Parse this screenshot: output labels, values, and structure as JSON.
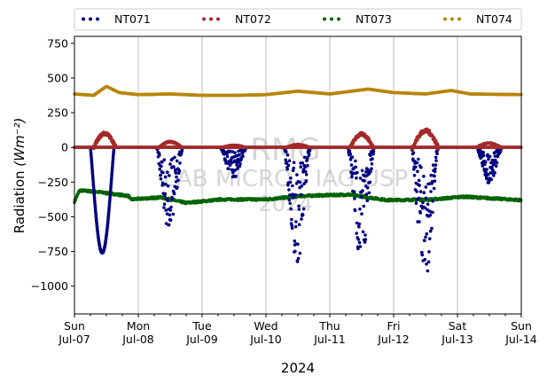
{
  "chart_data": {
    "type": "scatter",
    "xlabel": "2024",
    "ylabel": "Radiation",
    "ylabel_unit": "(Wm⁻²)",
    "ylim": [
      -1200,
      800
    ],
    "yticks": [
      -1000,
      -750,
      -500,
      -250,
      0,
      250,
      500,
      750
    ],
    "xlim": [
      0,
      7
    ],
    "xticks": [
      {
        "x": 0,
        "day": "Sun",
        "date": "Jul-07"
      },
      {
        "x": 1,
        "day": "Mon",
        "date": "Jul-08"
      },
      {
        "x": 2,
        "day": "Tue",
        "date": "Jul-09"
      },
      {
        "x": 3,
        "day": "Wed",
        "date": "Jul-10"
      },
      {
        "x": 4,
        "day": "Thu",
        "date": "Jul-11"
      },
      {
        "x": 5,
        "day": "Fri",
        "date": "Jul-12"
      },
      {
        "x": 6,
        "day": "Sat",
        "date": "Jul-13"
      },
      {
        "x": 7,
        "day": "Sun",
        "date": "Jul-14"
      }
    ],
    "grid": "vertical",
    "legend": "top",
    "watermark": [
      "RMG",
      "LAB MICRO - IAG USP",
      "2024"
    ],
    "series": [
      {
        "name": "NT071",
        "color": "#000080",
        "baseline": 0,
        "events": [
          {
            "s": 0.25,
            "e": 0.62,
            "min": -760,
            "kind": "smooth"
          },
          {
            "s": 1.28,
            "e": 1.7,
            "min": -560,
            "kind": "noisy"
          },
          {
            "s": 2.28,
            "e": 2.7,
            "min": -200,
            "kind": "noisy"
          },
          {
            "s": 3.28,
            "e": 3.7,
            "min": -760,
            "kind": "noisy"
          },
          {
            "s": 4.28,
            "e": 4.7,
            "min": -750,
            "kind": "noisy"
          },
          {
            "s": 5.28,
            "e": 5.7,
            "min": -900,
            "kind": "noisy"
          },
          {
            "s": 6.3,
            "e": 6.7,
            "min": -240,
            "kind": "noisy"
          }
        ]
      },
      {
        "name": "NT072",
        "color": "#a52a2a",
        "baseline": 0,
        "bumps": [
          {
            "s": 0.3,
            "e": 0.65,
            "peak": 100
          },
          {
            "s": 1.32,
            "e": 1.68,
            "peak": 40
          },
          {
            "s": 2.32,
            "e": 2.68,
            "peak": 15
          },
          {
            "s": 3.32,
            "e": 3.68,
            "peak": 20
          },
          {
            "s": 4.32,
            "e": 4.68,
            "peak": 95
          },
          {
            "s": 5.3,
            "e": 5.7,
            "peak": 120
          },
          {
            "s": 6.3,
            "e": 6.68,
            "peak": 30
          }
        ]
      },
      {
        "name": "NT073",
        "color": "#006400",
        "profile": [
          [
            0,
            -390
          ],
          [
            0.08,
            -310
          ],
          [
            0.35,
            -320
          ],
          [
            0.85,
            -350
          ],
          [
            0.88,
            -375
          ],
          [
            1.35,
            -360
          ],
          [
            1.75,
            -400
          ],
          [
            2.3,
            -375
          ],
          [
            3.0,
            -375
          ],
          [
            3.55,
            -350
          ],
          [
            4.3,
            -340
          ],
          [
            4.6,
            -360
          ],
          [
            4.9,
            -380
          ],
          [
            5.6,
            -375
          ],
          [
            6.1,
            -355
          ],
          [
            7,
            -380
          ]
        ]
      },
      {
        "name": "NT074",
        "color": "#b8860b",
        "profile": [
          [
            0,
            385
          ],
          [
            0.3,
            375
          ],
          [
            0.5,
            440
          ],
          [
            0.7,
            395
          ],
          [
            1.0,
            380
          ],
          [
            1.5,
            385
          ],
          [
            2.0,
            375
          ],
          [
            2.5,
            375
          ],
          [
            3.0,
            380
          ],
          [
            3.5,
            405
          ],
          [
            4.0,
            385
          ],
          [
            4.6,
            420
          ],
          [
            5.0,
            395
          ],
          [
            5.5,
            385
          ],
          [
            5.9,
            410
          ],
          [
            6.2,
            385
          ],
          [
            7,
            380
          ]
        ]
      }
    ]
  }
}
